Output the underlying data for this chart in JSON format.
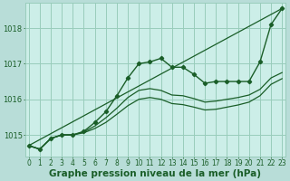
{
  "xlabel": "Graphe pression niveau de la mer (hPa)",
  "bg_color": "#b8ddd8",
  "grid_color": "#99ccbb",
  "line_color": "#1a5e28",
  "plot_bg": "#cceee8",
  "ylim": [
    1014.4,
    1018.7
  ],
  "xlim": [
    -0.3,
    23.3
  ],
  "yticks": [
    1015,
    1016,
    1017,
    1018
  ],
  "xticks": [
    0,
    1,
    2,
    3,
    4,
    5,
    6,
    7,
    8,
    9,
    10,
    11,
    12,
    13,
    14,
    15,
    16,
    17,
    18,
    19,
    20,
    21,
    22,
    23
  ],
  "series_main": {
    "x": [
      0,
      1,
      2,
      3,
      4,
      5,
      6,
      7,
      8,
      9,
      10,
      11,
      12,
      13,
      14,
      15,
      16,
      17,
      18,
      19,
      20,
      21,
      22,
      23
    ],
    "y": [
      1014.7,
      1014.6,
      1014.9,
      1015.0,
      1015.0,
      1015.1,
      1015.35,
      1015.65,
      1016.1,
      1016.6,
      1017.0,
      1017.05,
      1017.15,
      1016.9,
      1016.9,
      1016.7,
      1016.45,
      1016.5,
      1016.5,
      1016.5,
      1016.5,
      1017.05,
      1018.1,
      1018.55
    ]
  },
  "series_smooth1": {
    "x": [
      0,
      1,
      2,
      3,
      4,
      5,
      6,
      7,
      8,
      9,
      10,
      11,
      12,
      13,
      14,
      15,
      16,
      17,
      18,
      19,
      20,
      21,
      22,
      23
    ],
    "y": [
      1014.7,
      1014.6,
      1014.9,
      1015.0,
      1015.0,
      1015.08,
      1015.25,
      1015.48,
      1015.75,
      1016.05,
      1016.25,
      1016.3,
      1016.25,
      1016.12,
      1016.1,
      1016.02,
      1015.92,
      1015.95,
      1016.0,
      1016.05,
      1016.12,
      1016.28,
      1016.6,
      1016.75
    ]
  },
  "series_smooth2": {
    "x": [
      0,
      1,
      2,
      3,
      4,
      5,
      6,
      7,
      8,
      9,
      10,
      11,
      12,
      13,
      14,
      15,
      16,
      17,
      18,
      19,
      20,
      21,
      22,
      23
    ],
    "y": [
      1014.7,
      1014.6,
      1014.9,
      1015.0,
      1015.0,
      1015.06,
      1015.18,
      1015.35,
      1015.58,
      1015.82,
      1016.0,
      1016.05,
      1016.0,
      1015.88,
      1015.85,
      1015.78,
      1015.7,
      1015.72,
      1015.78,
      1015.84,
      1015.92,
      1016.1,
      1016.42,
      1016.58
    ]
  },
  "series_linear": {
    "x": [
      0,
      23
    ],
    "y": [
      1014.7,
      1018.55
    ]
  },
  "xlabel_color": "#1a5e28",
  "tick_color": "#1a5e28",
  "xlabel_fontsize": 7.5,
  "tick_label_fontsize": 5.5
}
